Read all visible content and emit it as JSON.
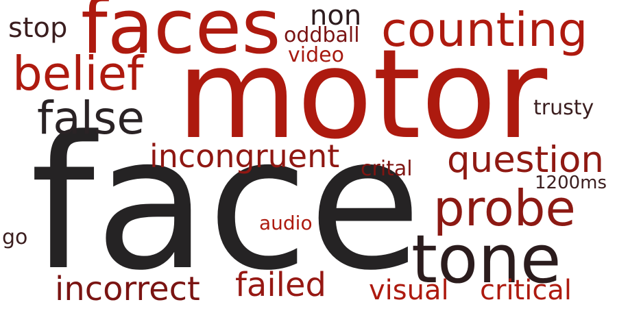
{
  "cloud": {
    "words": [
      {
        "text": "face",
        "color": "#252324"
      },
      {
        "text": "motor",
        "color": "#ad1a0f"
      },
      {
        "text": "faces",
        "color": "#ae1a0f"
      },
      {
        "text": "counting",
        "color": "#ae1a0f"
      },
      {
        "text": "belief",
        "color": "#ae1a0f"
      },
      {
        "text": "false",
        "color": "#2a2325"
      },
      {
        "text": "tone",
        "color": "#2b1c1d"
      },
      {
        "text": "probe",
        "color": "#8c1913"
      },
      {
        "text": "question",
        "color": "#8f1912"
      },
      {
        "text": "incongruent",
        "color": "#8f1712"
      },
      {
        "text": "incorrect",
        "color": "#7a1412"
      },
      {
        "text": "failed",
        "color": "#961813"
      },
      {
        "text": "visual",
        "color": "#ad1a0f"
      },
      {
        "text": "critical",
        "color": "#ad1a0f"
      },
      {
        "text": "non",
        "color": "#2d1c1e"
      },
      {
        "text": "oddball",
        "color": "#7a1414"
      },
      {
        "text": "video",
        "color": "#a61a10"
      },
      {
        "text": "stop",
        "color": "#3b1e1f"
      },
      {
        "text": "trusty",
        "color": "#3b1e1f"
      },
      {
        "text": "crital",
        "color": "#7f1512"
      },
      {
        "text": "1200ms",
        "color": "#3b1e1f"
      },
      {
        "text": "audio",
        "color": "#ad1a0f"
      },
      {
        "text": "go",
        "color": "#3b1e1f"
      }
    ]
  }
}
